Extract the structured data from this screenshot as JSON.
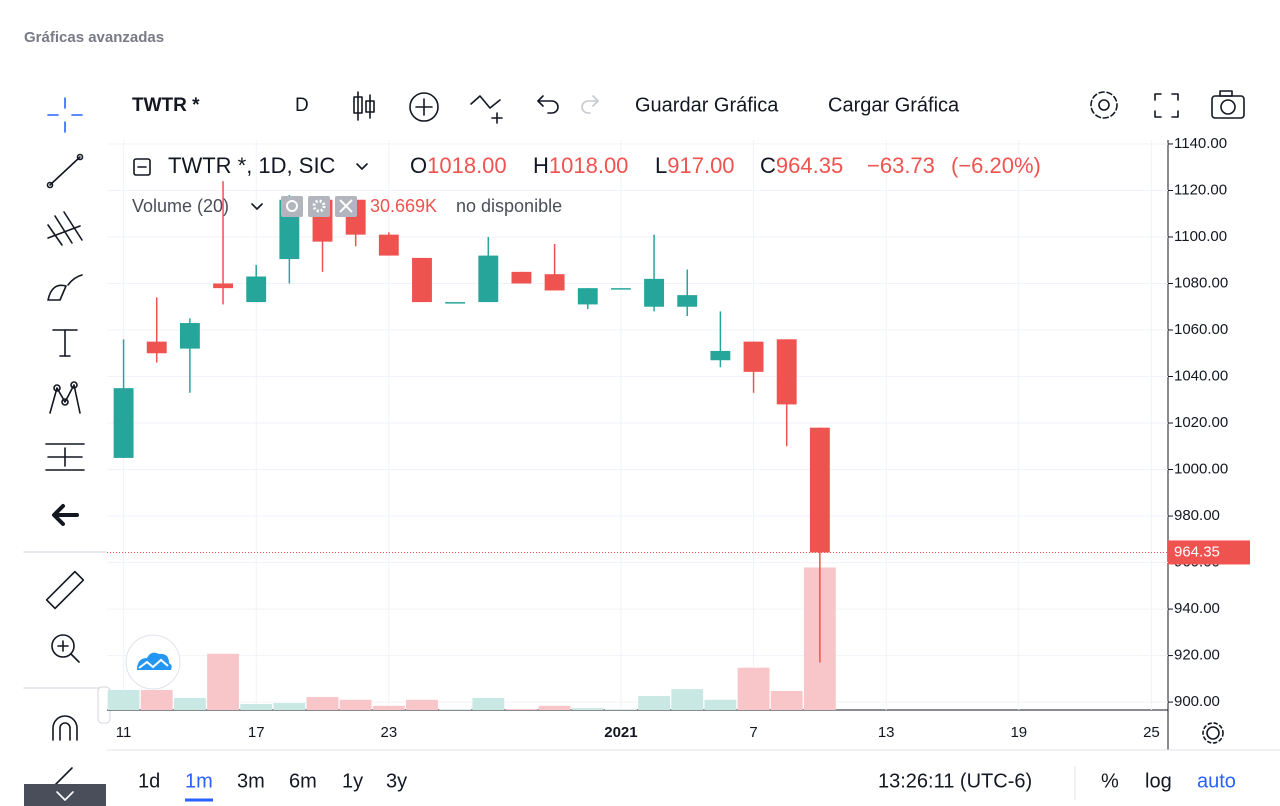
{
  "ui": {
    "page_title": "Gráficas avanzadas",
    "symbol": "TWTR *",
    "interval": "D",
    "save": "Guardar Gráfica",
    "load": "Cargar Gráfica",
    "legend_symbol": "TWTR *, 1D, SIC",
    "volume_status": "no disponible",
    "ranges": [
      "1d",
      "1m",
      "3m",
      "6m",
      "1y",
      "3y"
    ],
    "clock": "13:26:11 (UTC-6)",
    "percent": "%",
    "log": "log",
    "auto": "auto"
  },
  "chart_data": {
    "type": "candlestick",
    "categories": [
      "11",
      null,
      null,
      null,
      "17",
      null,
      null,
      null,
      "23",
      null,
      null,
      null,
      null,
      null,
      null,
      "2021",
      null,
      null,
      null,
      "7",
      null,
      null,
      null,
      "13",
      null,
      null,
      null,
      "19",
      null,
      null,
      null,
      "25"
    ],
    "open": [
      1005,
      1055,
      1052,
      1080,
      1072,
      1090.5,
      1116,
      1116,
      1101,
      1091,
      1072,
      1072,
      1085,
      1084,
      1071,
      1078,
      1070,
      1070,
      1047,
      1055,
      1056,
      1018,
      null,
      null,
      null,
      null,
      null,
      null,
      null,
      null,
      null,
      null
    ],
    "high": [
      1056,
      1074,
      1065,
      1124,
      1088,
      1118,
      1116,
      1116,
      1102,
      1091,
      1072,
      1100,
      1085,
      1097,
      1078,
      1078,
      1101,
      1086,
      1068,
      1055,
      1056,
      1018,
      null,
      null,
      null,
      null,
      null,
      null,
      null,
      null,
      null,
      null
    ],
    "low": [
      1005,
      1046,
      1033,
      1071,
      1072,
      1080,
      1085,
      1096,
      1092,
      1072,
      1072,
      1072,
      1080,
      1077,
      1069,
      1078,
      1068,
      1066,
      1044,
      1033,
      1010,
      917,
      null,
      null,
      null,
      null,
      null,
      null,
      null,
      null,
      null,
      null
    ],
    "close": [
      1035,
      1050,
      1063,
      1078,
      1083,
      1116,
      1098,
      1101,
      1092,
      1072,
      1072,
      1092,
      1080,
      1077,
      1078,
      1078,
      1082,
      1075,
      1051,
      1042,
      1028,
      964.35,
      null,
      null,
      null,
      null,
      null,
      null,
      null,
      null,
      null,
      null
    ],
    "up_color": "#26a69a",
    "down_color": "#ef5350",
    "volume": {
      "name": "Volume (20)",
      "values": [
        4.3,
        4.3,
        2.6,
        12.1,
        1.3,
        1.5,
        2.8,
        2.2,
        0.9,
        2.2,
        0.1,
        2.6,
        0.2,
        0.9,
        0.4,
        0.1,
        3,
        4.5,
        2.2,
        9.1,
        4.1,
        30.669,
        null,
        null,
        null,
        null,
        null,
        null,
        null,
        null,
        null,
        null
      ],
      "value_label": "30.669K",
      "up_color": "#c9e8e3",
      "down_color": "#f8c6c8"
    },
    "legend": [
      {
        "key": "O",
        "value": 1018,
        "label": "1018.00"
      },
      {
        "key": "H",
        "value": 1018,
        "label": "1018.00"
      },
      {
        "key": "L",
        "value": 917,
        "label": "917.00"
      },
      {
        "key": "C",
        "value": 964.35,
        "label": "964.35"
      }
    ],
    "change": {
      "value": -63.73,
      "label": "−63.73"
    },
    "change_pct": {
      "value": -6.2,
      "label": "(−6.20%)"
    },
    "last_price": {
      "value": 964.35,
      "label": "964.35"
    },
    "ylim": [
      896.6,
      1141.7
    ],
    "yticks": [
      {
        "value": 900,
        "label": "900.00"
      },
      {
        "value": 920,
        "label": "920.00"
      },
      {
        "value": 940,
        "label": "940.00"
      },
      {
        "value": 960,
        "label": "960.00"
      },
      {
        "value": 980,
        "label": "980.00"
      },
      {
        "value": 1000,
        "label": "1000.00"
      },
      {
        "value": 1020,
        "label": "1020.00"
      },
      {
        "value": 1040,
        "label": "1040.00"
      },
      {
        "value": 1060,
        "label": "1060.00"
      },
      {
        "value": 1080,
        "label": "1080.00"
      },
      {
        "value": 1100,
        "label": "1100.00"
      },
      {
        "value": 1120,
        "label": "1120.00"
      },
      {
        "value": 1140,
        "label": "1140.00"
      }
    ],
    "grid": true
  }
}
